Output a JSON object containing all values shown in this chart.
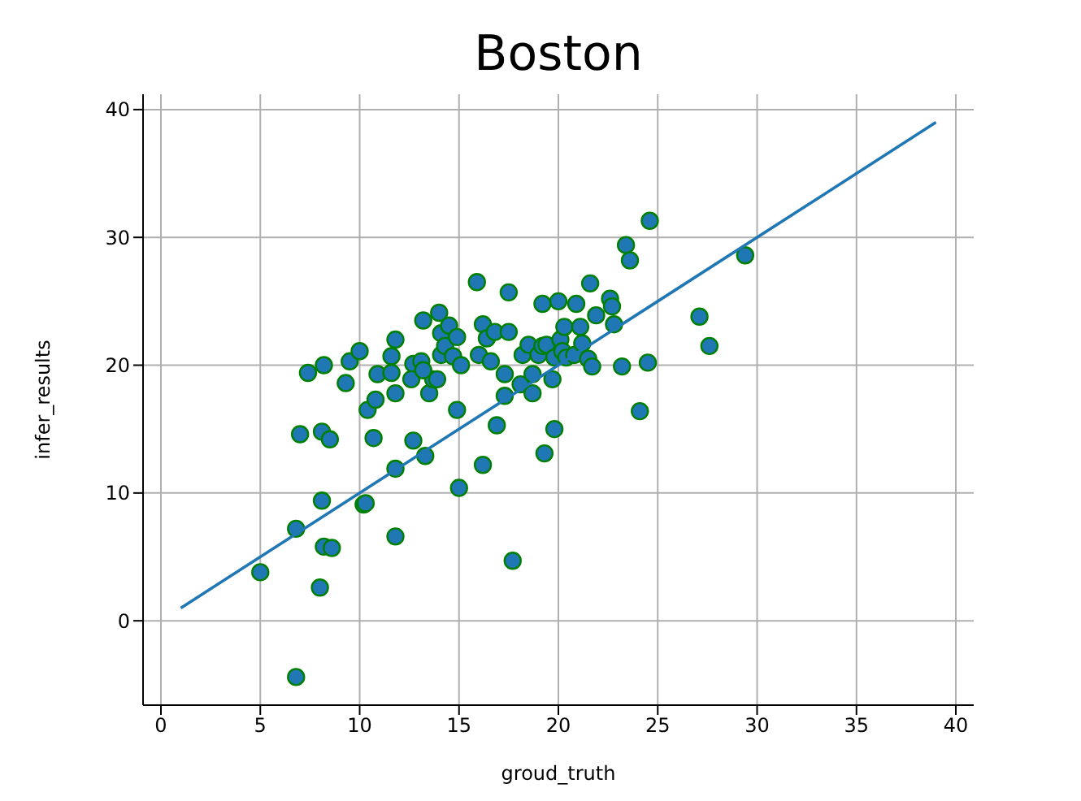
{
  "chart_data": {
    "type": "scatter",
    "title": "Boston",
    "xlabel": "groud_truth",
    "ylabel": "infer_results",
    "xlim": [
      -0.9,
      40.9
    ],
    "ylim": [
      -6.6,
      41.2
    ],
    "xticks": [
      0,
      5,
      10,
      15,
      20,
      25,
      30,
      35,
      40
    ],
    "yticks": [
      0,
      10,
      20,
      30,
      40
    ],
    "grid": true,
    "marker": "circle",
    "series": [
      {
        "color": "#1f77b4",
        "x": [
          5,
          6.8,
          6.8,
          7.0,
          7.4,
          8.1,
          8.5,
          8.1,
          8.2,
          8.2,
          8.6,
          8.0,
          9.3,
          9.5,
          10.0,
          10.2,
          10.4,
          10.7,
          10.8,
          10.9,
          11.8,
          11.6,
          11.6,
          11.8,
          11.8,
          11.8,
          10.3,
          12.7,
          12.6,
          12.7,
          13.1,
          13.2,
          13.3,
          13.5,
          13.7,
          13.2,
          14.0,
          14.1,
          14.1,
          14.3,
          14.5,
          13.9,
          14.7,
          14.9,
          14.9,
          15.0,
          15.1,
          15.9,
          16.0,
          16.2,
          16.2,
          16.4,
          16.6,
          16.8,
          16.9,
          17.3,
          17.3,
          17.5,
          17.5,
          17.7,
          18.2,
          18.1,
          18.5,
          18.7,
          18.7,
          19.0,
          19.2,
          19.4,
          19.2,
          19.3,
          19.7,
          19.8,
          19.8,
          20.0,
          20.1,
          20.2,
          20.3,
          20.4,
          20.8,
          20.9,
          21.1,
          21.2,
          21.5,
          21.6,
          21.7,
          21.9,
          22.6,
          22.7,
          22.8,
          23.4,
          23.6,
          23.2,
          24.1,
          24.6,
          29.4,
          27.1,
          27.6,
          24.5
        ],
        "values": [
          3.8,
          -4.4,
          7.2,
          14.6,
          19.4,
          14.8,
          14.2,
          9.4,
          20.0,
          5.8,
          5.7,
          2.6,
          18.6,
          20.3,
          21.1,
          9.1,
          16.5,
          14.3,
          17.3,
          19.3,
          22.0,
          20.7,
          19.4,
          17.8,
          11.9,
          6.6,
          9.2,
          20.1,
          18.9,
          14.1,
          20.3,
          23.5,
          12.9,
          17.8,
          18.9,
          19.6,
          24.1,
          22.5,
          20.8,
          21.5,
          23.1,
          18.9,
          20.7,
          22.2,
          16.5,
          10.4,
          20.0,
          26.5,
          20.8,
          23.2,
          12.2,
          22.1,
          20.3,
          22.6,
          15.3,
          19.3,
          17.6,
          22.6,
          25.7,
          4.7,
          20.8,
          18.5,
          21.6,
          19.3,
          17.8,
          20.8,
          21.5,
          21.6,
          24.8,
          13.1,
          18.9,
          20.6,
          15.0,
          25.0,
          22.0,
          21.1,
          23.0,
          20.6,
          20.8,
          24.8,
          23.0,
          21.7,
          20.5,
          26.4,
          19.9,
          23.9,
          25.2,
          24.6,
          23.2,
          29.4,
          28.2,
          19.9,
          16.4,
          31.3,
          28.6,
          23.8,
          21.5,
          20.2
        ]
      },
      {
        "type": "line",
        "color": "#1f77b4",
        "marker": "none",
        "x": [
          1,
          39
        ],
        "values": [
          1,
          39
        ]
      }
    ]
  }
}
